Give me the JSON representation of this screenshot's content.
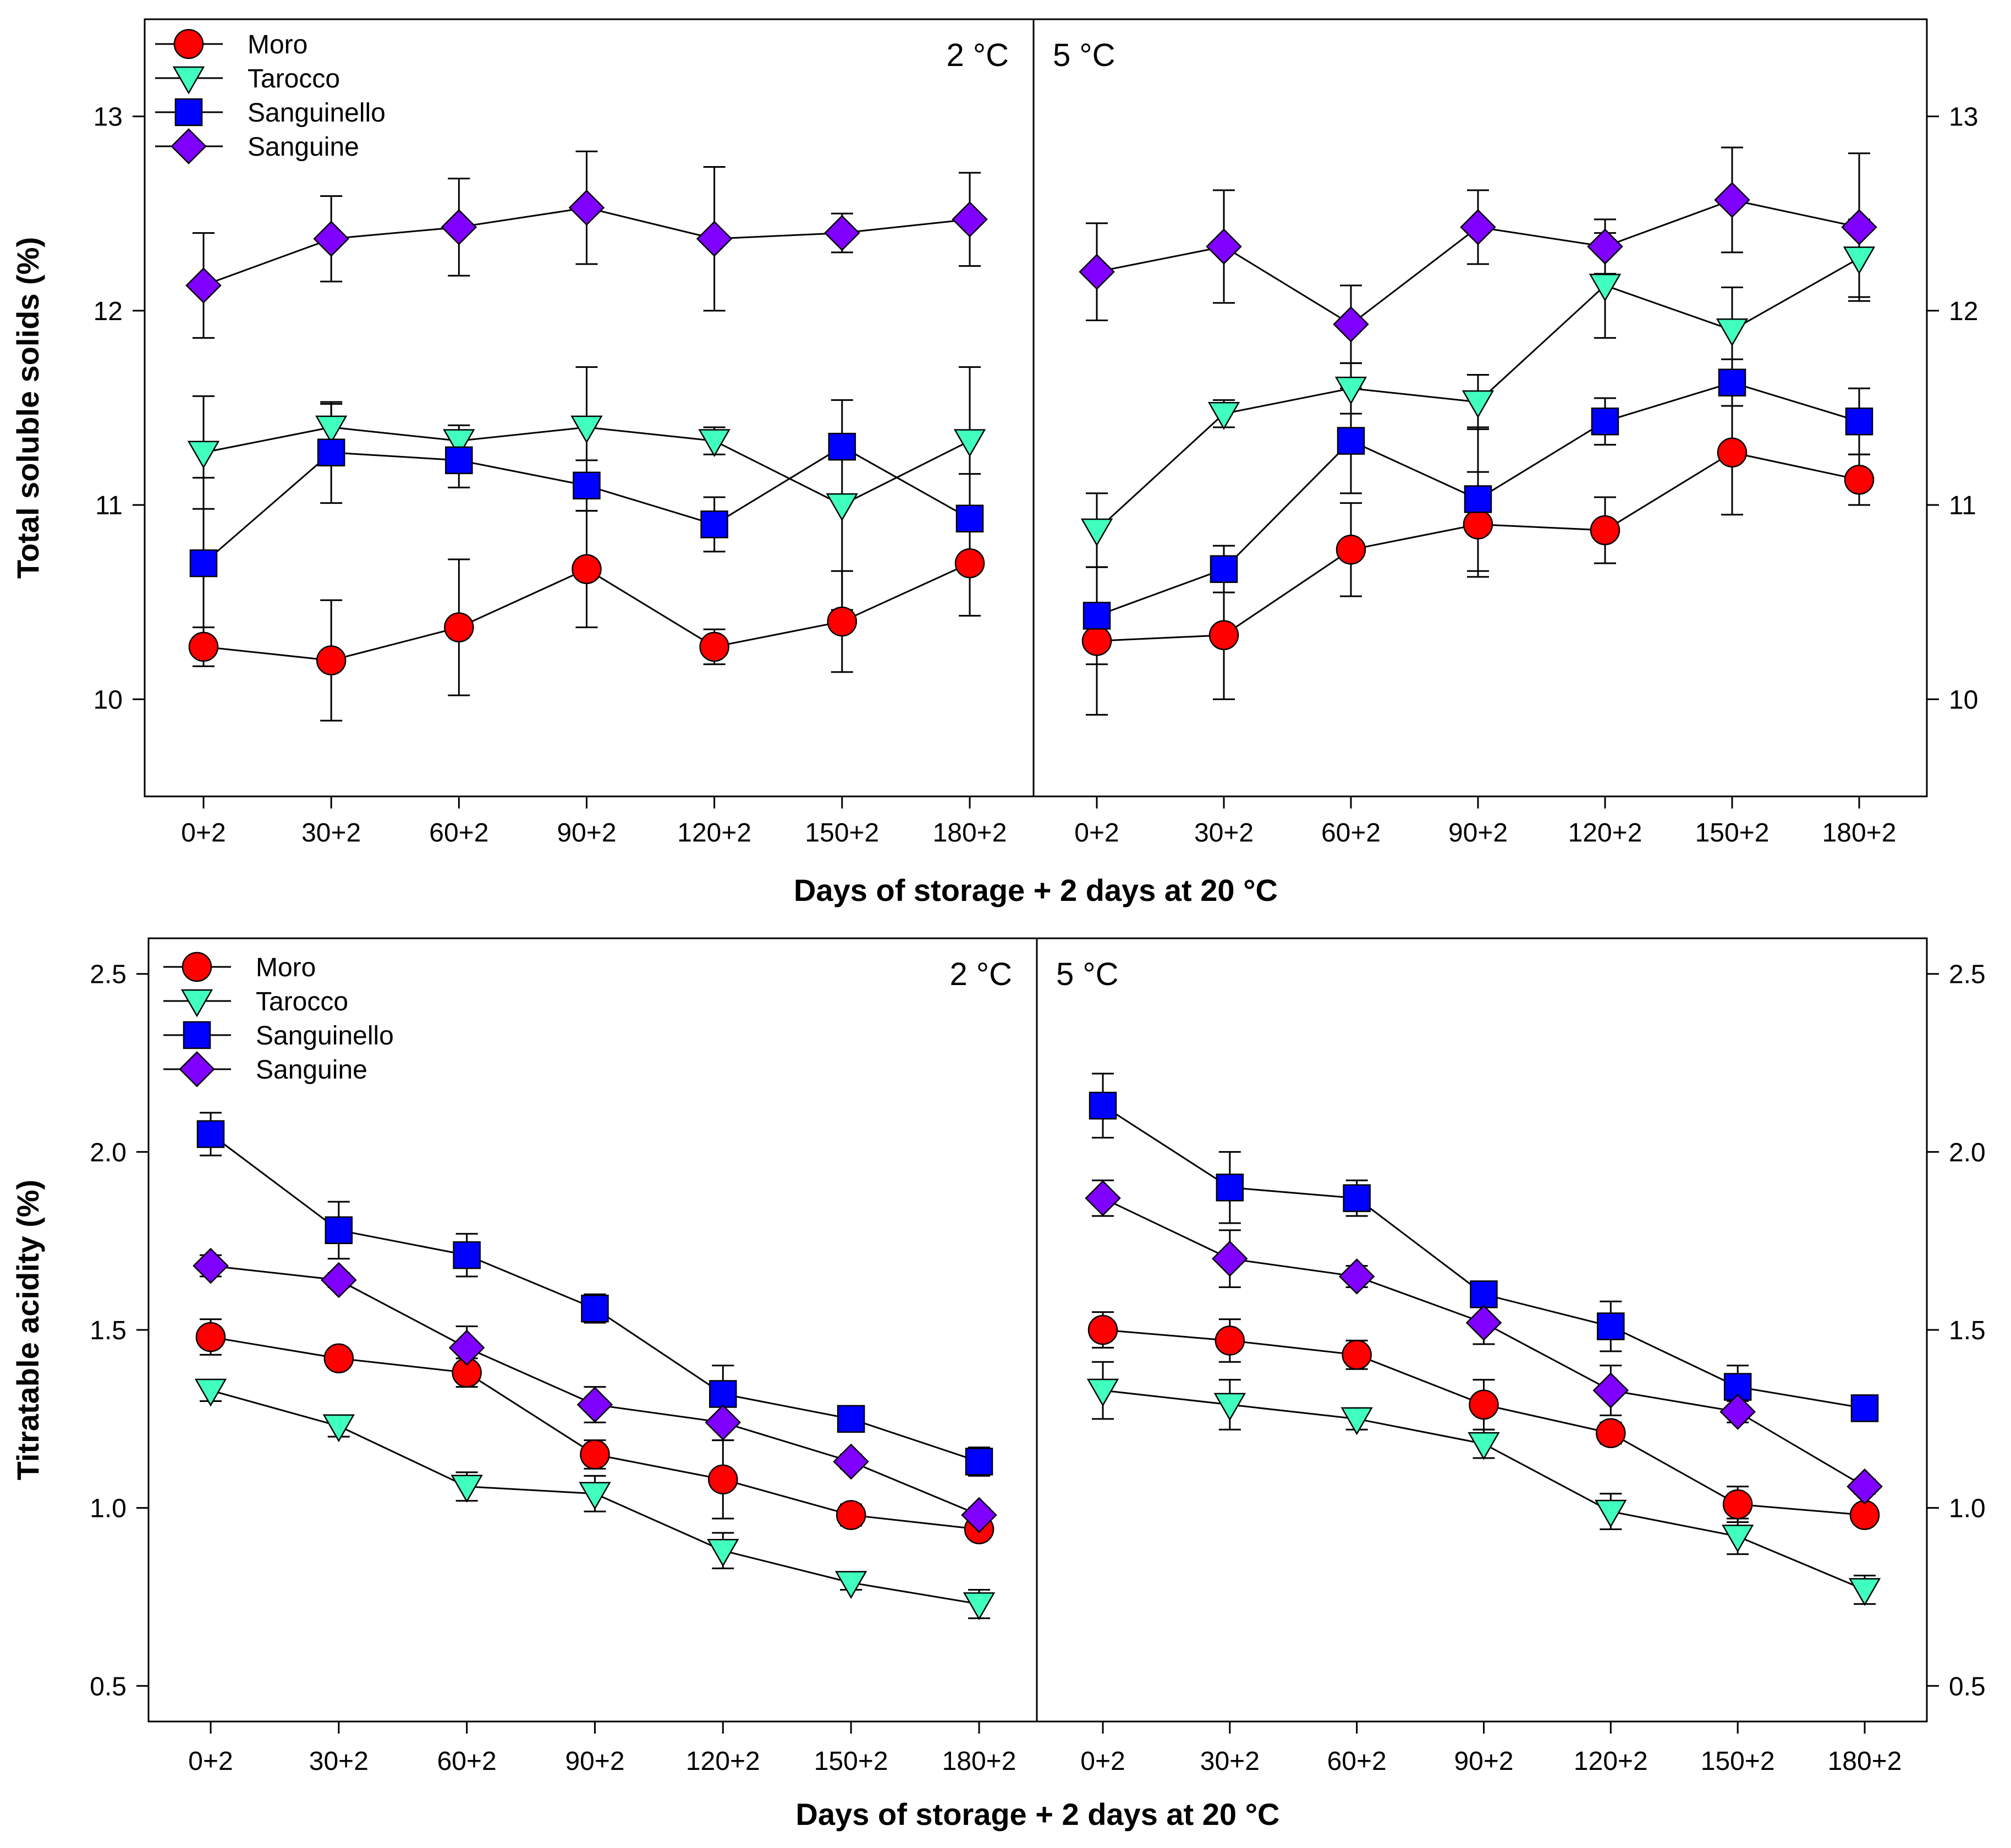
{
  "chart_data": [
    {
      "id": "tss",
      "type": "line",
      "ylabel": "Total soluble solids (%)",
      "xlabel": "Days of storage + 2 days at 20 °C",
      "ylim": [
        9.5,
        13.5
      ],
      "yticks": [
        "10",
        "11",
        "12",
        "13"
      ],
      "categories": [
        "0+2",
        "30+2",
        "60+2",
        "90+2",
        "120+2",
        "150+2",
        "180+2"
      ],
      "legend": {
        "placement": "top-left",
        "entries": [
          {
            "name": "Moro",
            "marker": "circle",
            "color": "#ff0000"
          },
          {
            "name": "Tarocco",
            "marker": "triangle-down",
            "color": "#40ffbf"
          },
          {
            "name": "Sanguinello",
            "marker": "square",
            "color": "#0000ff"
          },
          {
            "name": "Sanguine",
            "marker": "diamond",
            "color": "#8000ff"
          }
        ]
      },
      "panels": [
        {
          "label": "2 °C",
          "series": [
            {
              "name": "Moro",
              "values": [
                10.27,
                10.2,
                10.37,
                10.67,
                10.27,
                10.4,
                10.7
              ],
              "errors": [
                0.1,
                0.31,
                0.35,
                0.3,
                0.09,
                0.26,
                0.27
              ]
            },
            {
              "name": "Tarocco",
              "values": [
                11.27,
                11.4,
                11.33,
                11.4,
                11.33,
                11.0,
                11.33
              ],
              "errors": [
                0.29,
                0.12,
                0.08,
                0.31,
                0.07,
                0.54,
                0.38
              ]
            },
            {
              "name": "Sanguinello",
              "values": [
                10.7,
                11.27,
                11.23,
                11.1,
                10.9,
                11.3,
                10.93
              ],
              "errors": [
                0.44,
                0.26,
                0.14,
                0.13,
                0.14,
                0.05,
                0.23
              ]
            },
            {
              "name": "Sanguine",
              "values": [
                12.13,
                12.37,
                12.43,
                12.53,
                12.37,
                12.4,
                12.47
              ],
              "errors": [
                0.27,
                0.22,
                0.25,
                0.29,
                0.37,
                0.1,
                0.24
              ]
            }
          ]
        },
        {
          "label": "5 °C",
          "series": [
            {
              "name": "Moro",
              "values": [
                10.3,
                10.33,
                10.77,
                10.9,
                10.87,
                11.27,
                11.13
              ],
              "errors": [
                0.38,
                0.33,
                0.24,
                0.27,
                0.17,
                0.32,
                0.13
              ]
            },
            {
              "name": "Tarocco",
              "values": [
                10.87,
                11.47,
                11.6,
                11.53,
                12.13,
                11.9,
                12.27
              ],
              "errors": [
                0.19,
                0.07,
                0.13,
                0.14,
                0.27,
                0.22,
                0.2
              ]
            },
            {
              "name": "Sanguinello",
              "values": [
                10.43,
                10.67,
                11.33,
                11.03,
                11.43,
                11.63,
                11.43
              ],
              "errors": [
                0.25,
                0.12,
                0.27,
                0.37,
                0.12,
                0.12,
                0.17
              ]
            },
            {
              "name": "Sanguine",
              "values": [
                12.2,
                12.33,
                11.93,
                12.43,
                12.33,
                12.57,
                12.43
              ],
              "errors": [
                0.25,
                0.29,
                0.2,
                0.19,
                0.14,
                0.27,
                0.38
              ]
            }
          ]
        }
      ]
    },
    {
      "id": "ta",
      "type": "line",
      "ylabel": "Titratable acidity (%)",
      "xlabel": "Days of storage + 2 days at 20 °C",
      "ylim": [
        0.4,
        2.6
      ],
      "yticks": [
        "0.5",
        "1.0",
        "1.5",
        "2.0",
        "2.5"
      ],
      "categories": [
        "0+2",
        "30+2",
        "60+2",
        "90+2",
        "120+2",
        "150+2",
        "180+2"
      ],
      "legend": {
        "placement": "top-left",
        "entries": [
          {
            "name": "Moro",
            "marker": "circle",
            "color": "#ff0000"
          },
          {
            "name": "Tarocco",
            "marker": "triangle-down",
            "color": "#40ffbf"
          },
          {
            "name": "Sanguinello",
            "marker": "square",
            "color": "#0000ff"
          },
          {
            "name": "Sanguine",
            "marker": "diamond",
            "color": "#8000ff"
          }
        ]
      },
      "panels": [
        {
          "label": "2 °C",
          "series": [
            {
              "name": "Moro",
              "values": [
                1.48,
                1.42,
                1.38,
                1.15,
                1.08,
                0.98,
                0.94
              ],
              "errors": [
                0.05,
                0.02,
                0.04,
                0.04,
                0.11,
                0.03,
                0.02
              ]
            },
            {
              "name": "Tarocco",
              "values": [
                1.33,
                1.23,
                1.06,
                1.04,
                0.88,
                0.79,
                0.73
              ],
              "errors": [
                0.03,
                0.03,
                0.04,
                0.05,
                0.05,
                0.02,
                0.04
              ]
            },
            {
              "name": "Sanguinello",
              "values": [
                2.05,
                1.78,
                1.71,
                1.56,
                1.32,
                1.25,
                1.13
              ],
              "errors": [
                0.06,
                0.08,
                0.06,
                0.04,
                0.08,
                0.03,
                0.04
              ]
            },
            {
              "name": "Sanguine",
              "values": [
                1.68,
                1.64,
                1.45,
                1.29,
                1.24,
                1.13,
                0.98
              ],
              "errors": [
                0.03,
                0.02,
                0.06,
                0.05,
                0.05,
                0.02,
                0.02
              ]
            }
          ]
        },
        {
          "label": "5 °C",
          "series": [
            {
              "name": "Moro",
              "values": [
                1.5,
                1.47,
                1.43,
                1.29,
                1.21,
                1.01,
                0.98
              ],
              "errors": [
                0.05,
                0.06,
                0.04,
                0.07,
                0.03,
                0.05,
                0.02
              ]
            },
            {
              "name": "Tarocco",
              "values": [
                1.33,
                1.29,
                1.25,
                1.18,
                0.99,
                0.92,
                0.77
              ],
              "errors": [
                0.08,
                0.07,
                0.03,
                0.04,
                0.05,
                0.05,
                0.04
              ]
            },
            {
              "name": "Sanguinello",
              "values": [
                2.13,
                1.9,
                1.87,
                1.6,
                1.51,
                1.34,
                1.28
              ],
              "errors": [
                0.09,
                0.1,
                0.05,
                0.02,
                0.07,
                0.06,
                0.03
              ]
            },
            {
              "name": "Sanguine",
              "values": [
                1.87,
                1.7,
                1.65,
                1.52,
                1.33,
                1.27,
                1.06
              ],
              "errors": [
                0.05,
                0.08,
                0.03,
                0.06,
                0.07,
                0.03,
                0.02
              ]
            }
          ]
        }
      ]
    }
  ]
}
